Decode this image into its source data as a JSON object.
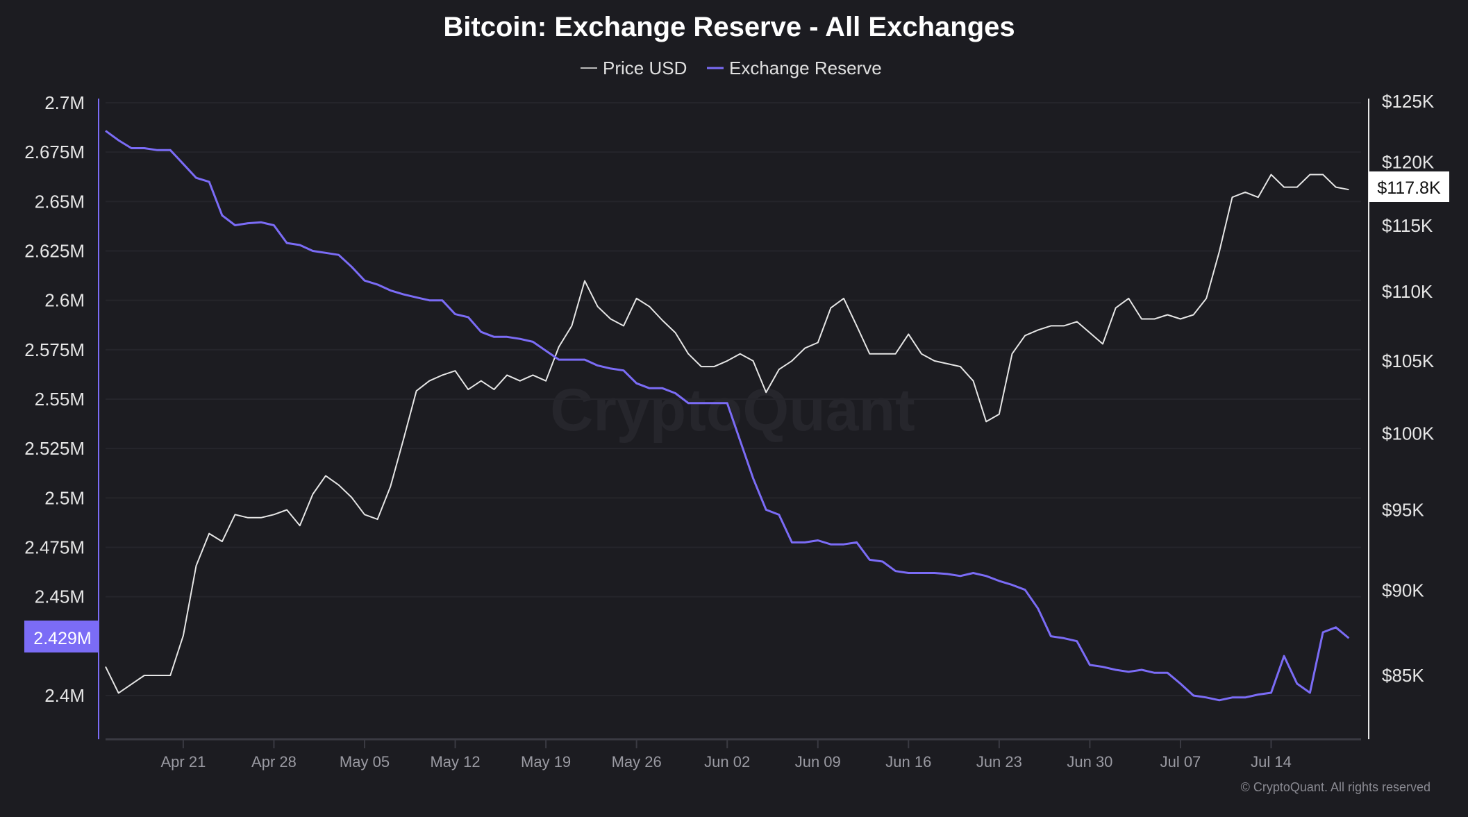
{
  "chart_data": {
    "type": "line",
    "title": "Bitcoin: Exchange Reserve - All Exchanges",
    "legend_position": "top-center",
    "grid": true,
    "x_ticks": [
      "Apr 21",
      "Apr 28",
      "May 05",
      "May 12",
      "May 19",
      "May 26",
      "Jun 02",
      "Jun 09",
      "Jun 16",
      "Jun 23",
      "Jun 30",
      "Jul 07",
      "Jul 14"
    ],
    "x_range": [
      "2025-04-15",
      "2025-07-20"
    ],
    "left_axis": {
      "ticks": [
        "2.7M",
        "2.675M",
        "2.65M",
        "2.625M",
        "2.6M",
        "2.575M",
        "2.55M",
        "2.525M",
        "2.5M",
        "2.475M",
        "2.45M",
        "2.4M"
      ],
      "range_millions": [
        2.385,
        2.7
      ],
      "current_label": "2.429M"
    },
    "right_axis": {
      "scale": "log",
      "ticks": [
        "$125K",
        "$120K",
        "$115K",
        "$110K",
        "$105K",
        "$100K",
        "$95K",
        "$90K",
        "$85K"
      ],
      "range_thousands": [
        82,
        125
      ],
      "current_label": "$117.8K"
    },
    "series": [
      {
        "name": "Price USD",
        "axis": "right",
        "unit": "USD thousands",
        "color": "#e6e6e6",
        "values": [
          85.5,
          84,
          84.5,
          85,
          85,
          85,
          87.3,
          91.5,
          93.5,
          93,
          94.7,
          94.5,
          94.5,
          94.7,
          95,
          94,
          96,
          97.2,
          96.6,
          95.8,
          94.7,
          94.4,
          96.5,
          99.6,
          102.9,
          103.6,
          104,
          104.3,
          103,
          103.6,
          103,
          104,
          103.6,
          104,
          103.6,
          106,
          107.5,
          110.8,
          108.9,
          108,
          107.5,
          109.5,
          108.9,
          107.9,
          107,
          105.5,
          104.6,
          104.6,
          105,
          105.5,
          105,
          102.8,
          104.4,
          105,
          105.9,
          106.3,
          108.8,
          109.5,
          107.5,
          105.5,
          105.5,
          105.5,
          106.9,
          105.5,
          105,
          104.8,
          104.6,
          103.6,
          100.8,
          101.3,
          105.5,
          106.8,
          107.2,
          107.5,
          107.5,
          107.8,
          107,
          106.2,
          108.8,
          109.5,
          108,
          108,
          108.3,
          108,
          108.3,
          109.5,
          113,
          117.2,
          117.6,
          117.2,
          119,
          118,
          118,
          119,
          119,
          118,
          117.8
        ]
      },
      {
        "name": "Exchange Reserve",
        "axis": "left",
        "unit": "BTC millions",
        "color": "#7b6cf6",
        "values": [
          2.6858,
          2.681,
          2.677,
          2.677,
          2.676,
          2.676,
          2.669,
          2.662,
          2.66,
          2.643,
          2.638,
          2.639,
          2.6395,
          2.638,
          2.629,
          2.628,
          2.625,
          2.624,
          2.623,
          2.617,
          2.61,
          2.608,
          2.605,
          2.603,
          2.6015,
          2.6,
          2.6,
          2.593,
          2.5915,
          2.584,
          2.5815,
          2.5815,
          2.5805,
          2.579,
          2.5745,
          2.57,
          2.57,
          2.57,
          2.567,
          2.5655,
          2.5645,
          2.558,
          2.5555,
          2.5555,
          2.553,
          2.548,
          2.548,
          2.548,
          2.548,
          2.529,
          2.51,
          2.494,
          2.4915,
          2.4775,
          2.4775,
          2.4785,
          2.4765,
          2.4765,
          2.4775,
          2.4687,
          2.4678,
          2.463,
          2.462,
          2.462,
          2.462,
          2.4615,
          2.4605,
          2.462,
          2.4605,
          2.458,
          2.456,
          2.4535,
          2.444,
          2.43,
          2.429,
          2.4275,
          2.4155,
          2.4145,
          2.413,
          2.412,
          2.413,
          2.4115,
          2.4115,
          2.406,
          2.4,
          2.399,
          2.3976,
          2.399,
          2.399,
          2.4005,
          2.4014,
          2.42,
          2.406,
          2.4014,
          2.432,
          2.4345,
          2.429
        ]
      }
    ]
  },
  "watermark": "CryptoQuant",
  "copyright": "© CryptoQuant. All rights reserved"
}
